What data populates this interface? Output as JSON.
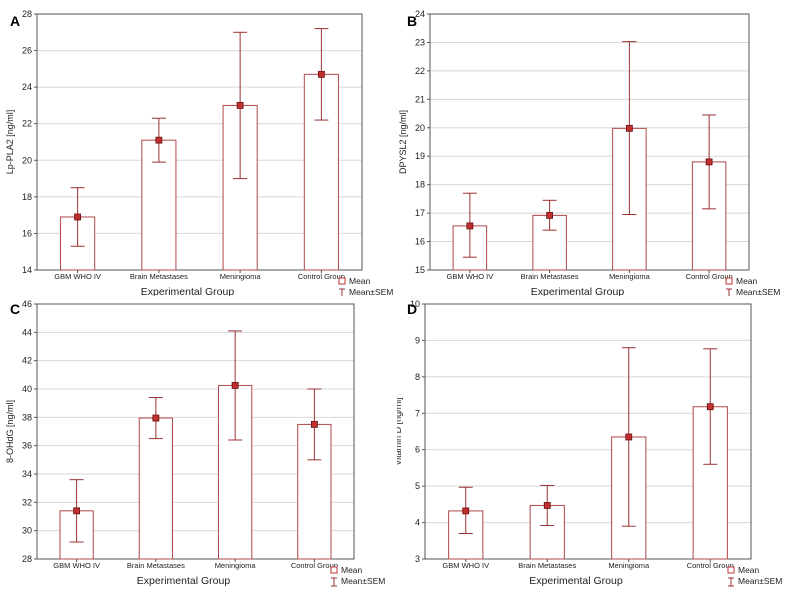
{
  "chart_data": [
    {
      "type": "bar",
      "panel_label": "A",
      "title": "",
      "xlabel": "Experimental Group",
      "ylabel": "Lp-PLA2 [ng/ml]",
      "categories": [
        "GBM WHO IV",
        "Brain Metastases",
        "Meningioma",
        "Control Group"
      ],
      "series": [
        {
          "name": "Mean",
          "values": [
            16.9,
            21.1,
            23.0,
            24.7
          ]
        },
        {
          "name": "Mean±SEM",
          "lower": [
            15.3,
            19.9,
            19.0,
            22.2
          ],
          "upper": [
            18.5,
            22.3,
            27.0,
            27.2
          ]
        }
      ],
      "ylim": [
        14,
        28
      ],
      "yticks": [
        14,
        16,
        18,
        20,
        22,
        24,
        26,
        28
      ],
      "grid": true,
      "legend": [
        "Mean",
        "Mean±SEM"
      ]
    },
    {
      "type": "bar",
      "panel_label": "B",
      "title": "",
      "xlabel": "Experimental Group",
      "ylabel": "DPYSL2 [ng/ml]",
      "categories": [
        "GBM WHO IV",
        "Brain Metastases",
        "Meningioma",
        "Control Group"
      ],
      "series": [
        {
          "name": "Mean",
          "values": [
            16.55,
            16.92,
            19.98,
            18.8
          ]
        },
        {
          "name": "Mean±SEM",
          "lower": [
            15.45,
            16.4,
            16.95,
            17.15
          ],
          "upper": [
            17.7,
            17.45,
            23.03,
            20.45
          ]
        }
      ],
      "ylim": [
        15,
        24
      ],
      "yticks": [
        15,
        16,
        17,
        18,
        19,
        20,
        21,
        22,
        23,
        24
      ],
      "grid": true,
      "legend": [
        "Mean",
        "Mean±SEM"
      ]
    },
    {
      "type": "bar",
      "panel_label": "C",
      "title": "",
      "xlabel": "Experimental Group",
      "ylabel": "8-OHdG [ng/ml]",
      "categories": [
        "GBM WHO IV",
        "Brain Metastases",
        "Meningioma",
        "Control Group"
      ],
      "series": [
        {
          "name": "Mean",
          "values": [
            31.4,
            37.95,
            40.25,
            37.5
          ]
        },
        {
          "name": "Mean±SEM",
          "lower": [
            29.2,
            36.5,
            36.4,
            35.0
          ],
          "upper": [
            33.6,
            39.4,
            44.1,
            40.0
          ]
        }
      ],
      "ylim": [
        28,
        46
      ],
      "yticks": [
        28,
        30,
        32,
        34,
        36,
        38,
        40,
        42,
        44,
        46
      ],
      "grid": true,
      "legend": [
        "Mean",
        "Mean±SEM"
      ]
    },
    {
      "type": "bar",
      "panel_label": "D",
      "title": "",
      "xlabel": "Experimental Group",
      "ylabel": "Vitamin D [ng/ml]",
      "categories": [
        "GBM WHO IV",
        "Brain Metastases",
        "Meningioma",
        "Control Group"
      ],
      "series": [
        {
          "name": "Mean",
          "values": [
            4.32,
            4.47,
            6.35,
            7.18
          ]
        },
        {
          "name": "Mean±SEM",
          "lower": [
            3.7,
            3.92,
            3.9,
            5.6
          ],
          "upper": [
            4.97,
            5.02,
            8.8,
            8.77
          ]
        }
      ],
      "ylim": [
        3,
        10
      ],
      "yticks": [
        3,
        4,
        5,
        6,
        7,
        8,
        9,
        10
      ],
      "grid": true,
      "legend": [
        "Mean",
        "Mean±SEM"
      ]
    }
  ],
  "colors": {
    "bar_edge": "#b04848",
    "error_bar": "#9a3030",
    "mean_marker": "#c03030",
    "grid": "#d8d8d8",
    "axis": "#555555",
    "text": "#222222"
  }
}
